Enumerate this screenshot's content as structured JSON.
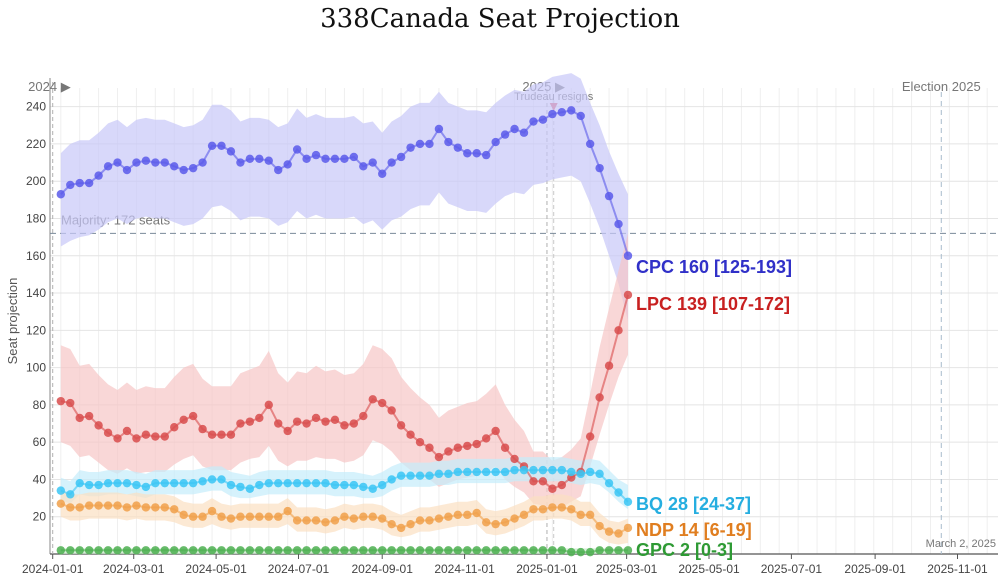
{
  "title": "338Canada Seat Projection",
  "chart_data": {
    "type": "line",
    "title": "338Canada Seat Projection",
    "ylabel": "Seat projection",
    "xlabel": "",
    "ylim": [
      0,
      250
    ],
    "yticks": [
      20,
      40,
      60,
      80,
      100,
      120,
      140,
      160,
      180,
      200,
      220,
      240
    ],
    "xlim": [
      "2023-12-30",
      "2025-12-01"
    ],
    "xticks": [
      "2024-01-01",
      "2024-03-01",
      "2024-05-01",
      "2024-07-01",
      "2024-09-01",
      "2024-11-01",
      "2025-01-01",
      "2025-03-01",
      "2025-05-01",
      "2025-07-01",
      "2025-09-01",
      "2025-11-01"
    ],
    "grid": true,
    "majority": {
      "value": 172,
      "label": "Majority: 172 seats"
    },
    "year_markers": [
      {
        "date": "2024-01-01",
        "label": "2024 ▶"
      },
      {
        "date": "2025-01-01",
        "label": "2025 ▶"
      }
    ],
    "event_markers": [
      {
        "date": "2025-01-06",
        "label": "Trudeau resigns",
        "color": "#e06070"
      },
      {
        "date": "2025-10-20",
        "label": "Election 2025",
        "color": "#6a8fb0"
      }
    ],
    "updated_label": "March 2, 2025",
    "dates": [
      "2024-01-07",
      "2024-01-14",
      "2024-01-21",
      "2024-01-28",
      "2024-02-04",
      "2024-02-11",
      "2024-02-18",
      "2024-02-25",
      "2024-03-03",
      "2024-03-10",
      "2024-03-17",
      "2024-03-24",
      "2024-03-31",
      "2024-04-07",
      "2024-04-14",
      "2024-04-21",
      "2024-04-28",
      "2024-05-05",
      "2024-05-12",
      "2024-05-19",
      "2024-05-26",
      "2024-06-02",
      "2024-06-09",
      "2024-06-16",
      "2024-06-23",
      "2024-06-30",
      "2024-07-07",
      "2024-07-14",
      "2024-07-21",
      "2024-07-28",
      "2024-08-04",
      "2024-08-11",
      "2024-08-18",
      "2024-08-25",
      "2024-09-01",
      "2024-09-08",
      "2024-09-15",
      "2024-09-22",
      "2024-09-29",
      "2024-10-06",
      "2024-10-13",
      "2024-10-20",
      "2024-10-27",
      "2024-11-03",
      "2024-11-10",
      "2024-11-17",
      "2024-11-24",
      "2024-12-01",
      "2024-12-08",
      "2024-12-15",
      "2024-12-22",
      "2024-12-29",
      "2025-01-05",
      "2025-01-12",
      "2025-01-19",
      "2025-01-26",
      "2025-02-02",
      "2025-02-09",
      "2025-02-16",
      "2025-02-23",
      "2025-03-02"
    ],
    "series": [
      {
        "name": "CPC",
        "color": "#5b5bea",
        "band_color": "#c8c8f8",
        "label_color": "#3030c8",
        "final_label": "CPC 160 [125-193]",
        "values": [
          193,
          198,
          199,
          199,
          203,
          208,
          210,
          206,
          210,
          211,
          210,
          210,
          208,
          206,
          207,
          210,
          219,
          219,
          216,
          210,
          212,
          212,
          211,
          206,
          209,
          217,
          212,
          214,
          212,
          212,
          212,
          213,
          208,
          210,
          204,
          210,
          213,
          218,
          220,
          220,
          228,
          221,
          218,
          215,
          215,
          214,
          221,
          225,
          228,
          226,
          232,
          233,
          236,
          237,
          238,
          235,
          220,
          207,
          192,
          177,
          160
        ],
        "low": [
          165,
          168,
          170,
          171,
          174,
          178,
          180,
          177,
          180,
          181,
          180,
          180,
          178,
          176,
          177,
          180,
          186,
          187,
          184,
          179,
          181,
          181,
          180,
          176,
          178,
          184,
          180,
          182,
          180,
          180,
          180,
          181,
          177,
          179,
          174,
          179,
          181,
          185,
          187,
          187,
          194,
          188,
          186,
          184,
          184,
          183,
          188,
          192,
          194,
          193,
          198,
          199,
          201,
          202,
          203,
          200,
          188,
          175,
          160,
          145,
          125
        ],
        "high": [
          215,
          220,
          222,
          222,
          226,
          231,
          233,
          229,
          233,
          234,
          233,
          233,
          231,
          229,
          230,
          233,
          241,
          241,
          238,
          232,
          234,
          234,
          233,
          229,
          231,
          239,
          234,
          236,
          234,
          234,
          234,
          235,
          231,
          232,
          226,
          232,
          235,
          240,
          242,
          242,
          248,
          242,
          240,
          238,
          238,
          237,
          242,
          246,
          249,
          248,
          252,
          253,
          256,
          257,
          258,
          255,
          242,
          230,
          216,
          204,
          193
        ]
      },
      {
        "name": "LPC",
        "color": "#d84c4c",
        "band_color": "#f7c6c6",
        "label_color": "#c82020",
        "final_label": "LPC 139 [107-172]",
        "values": [
          82,
          81,
          73,
          74,
          69,
          65,
          62,
          66,
          62,
          64,
          63,
          63,
          68,
          72,
          74,
          67,
          64,
          64,
          64,
          70,
          71,
          73,
          80,
          70,
          66,
          71,
          70,
          73,
          71,
          72,
          69,
          70,
          74,
          83,
          81,
          77,
          69,
          64,
          60,
          57,
          52,
          55,
          57,
          58,
          59,
          62,
          66,
          57,
          51,
          47,
          39,
          39,
          35,
          37,
          41,
          44,
          63,
          84,
          101,
          120,
          139
        ],
        "low": [
          60,
          58,
          52,
          53,
          49,
          45,
          43,
          46,
          43,
          44,
          44,
          44,
          48,
          51,
          53,
          47,
          45,
          45,
          45,
          49,
          51,
          52,
          58,
          50,
          47,
          50,
          50,
          52,
          51,
          51,
          49,
          50,
          53,
          61,
          59,
          55,
          49,
          45,
          42,
          40,
          36,
          38,
          40,
          41,
          42,
          44,
          47,
          40,
          36,
          33,
          27,
          26,
          23,
          25,
          28,
          31,
          47,
          64,
          80,
          95,
          107
        ],
        "high": [
          112,
          110,
          101,
          102,
          96,
          91,
          88,
          92,
          88,
          90,
          89,
          89,
          95,
          100,
          102,
          94,
          90,
          90,
          90,
          97,
          99,
          101,
          109,
          97,
          92,
          98,
          97,
          101,
          98,
          99,
          96,
          97,
          102,
          112,
          110,
          105,
          95,
          89,
          84,
          80,
          73,
          77,
          79,
          81,
          82,
          86,
          91,
          80,
          72,
          66,
          55,
          55,
          50,
          52,
          56,
          62,
          86,
          111,
          132,
          152,
          172
        ]
      },
      {
        "name": "BQ",
        "color": "#3ac6f5",
        "band_color": "#c4ecfb",
        "label_color": "#25aee0",
        "final_label": "BQ 28 [24-37]",
        "values": [
          34,
          32,
          38,
          37,
          37,
          38,
          38,
          38,
          37,
          36,
          38,
          38,
          38,
          38,
          38,
          39,
          40,
          40,
          37,
          36,
          35,
          37,
          38,
          38,
          38,
          38,
          38,
          38,
          38,
          37,
          37,
          37,
          36,
          35,
          37,
          40,
          42,
          42,
          42,
          42,
          43,
          43,
          44,
          44,
          44,
          44,
          44,
          44,
          45,
          45,
          45,
          45,
          45,
          45,
          44,
          43,
          44,
          43,
          38,
          33,
          28
        ],
        "low": [
          29,
          27,
          32,
          31,
          31,
          32,
          32,
          32,
          31,
          30,
          32,
          32,
          32,
          32,
          32,
          33,
          34,
          34,
          31,
          30,
          30,
          31,
          32,
          32,
          32,
          32,
          32,
          32,
          32,
          31,
          31,
          31,
          30,
          30,
          31,
          34,
          36,
          36,
          36,
          36,
          37,
          37,
          38,
          38,
          38,
          38,
          38,
          38,
          39,
          39,
          39,
          39,
          39,
          39,
          38,
          37,
          38,
          37,
          33,
          28,
          24
        ],
        "high": [
          41,
          39,
          45,
          44,
          44,
          45,
          45,
          45,
          44,
          43,
          45,
          45,
          45,
          45,
          45,
          46,
          47,
          47,
          44,
          43,
          42,
          44,
          45,
          45,
          45,
          45,
          45,
          45,
          45,
          44,
          44,
          44,
          43,
          42,
          44,
          47,
          49,
          49,
          49,
          49,
          50,
          50,
          51,
          51,
          51,
          51,
          51,
          51,
          52,
          52,
          52,
          52,
          52,
          52,
          51,
          50,
          51,
          50,
          45,
          40,
          37
        ]
      },
      {
        "name": "NDP",
        "color": "#f0a04a",
        "band_color": "#fbe0c2",
        "label_color": "#e07e20",
        "final_label": "NDP 14 [6-19]",
        "values": [
          27,
          25,
          25,
          26,
          26,
          26,
          26,
          25,
          26,
          25,
          25,
          25,
          24,
          21,
          20,
          20,
          23,
          20,
          19,
          20,
          20,
          20,
          20,
          20,
          23,
          18,
          18,
          18,
          17,
          18,
          20,
          19,
          20,
          20,
          19,
          16,
          14,
          16,
          18,
          18,
          19,
          20,
          21,
          21,
          22,
          17,
          16,
          17,
          19,
          21,
          24,
          24,
          25,
          25,
          24,
          21,
          21,
          15,
          12,
          11,
          14
        ],
        "low": [
          20,
          18,
          18,
          19,
          19,
          19,
          19,
          18,
          19,
          18,
          18,
          18,
          17,
          15,
          14,
          14,
          16,
          14,
          13,
          14,
          14,
          14,
          14,
          14,
          16,
          12,
          12,
          12,
          11,
          12,
          14,
          13,
          14,
          14,
          13,
          10,
          9,
          10,
          12,
          12,
          13,
          14,
          15,
          15,
          16,
          11,
          10,
          11,
          13,
          15,
          18,
          18,
          19,
          19,
          18,
          15,
          15,
          9,
          6,
          5,
          6
        ],
        "high": [
          34,
          32,
          32,
          33,
          33,
          33,
          33,
          32,
          33,
          32,
          32,
          32,
          31,
          28,
          27,
          27,
          30,
          27,
          26,
          27,
          27,
          27,
          27,
          27,
          30,
          25,
          25,
          25,
          24,
          25,
          27,
          26,
          27,
          27,
          26,
          23,
          21,
          23,
          25,
          25,
          26,
          27,
          28,
          28,
          29,
          24,
          23,
          24,
          26,
          28,
          31,
          31,
          32,
          32,
          31,
          28,
          28,
          22,
          18,
          17,
          19
        ]
      },
      {
        "name": "GPC",
        "color": "#4caf50",
        "band_color": "#c8e8c9",
        "label_color": "#2e9a34",
        "final_label": "GPC 2 [0-3]",
        "values": [
          2,
          2,
          2,
          2,
          2,
          2,
          2,
          2,
          2,
          2,
          2,
          2,
          2,
          2,
          2,
          2,
          2,
          2,
          2,
          2,
          2,
          2,
          2,
          2,
          2,
          2,
          2,
          2,
          2,
          2,
          2,
          2,
          2,
          2,
          2,
          2,
          2,
          2,
          2,
          2,
          2,
          2,
          2,
          2,
          2,
          2,
          2,
          2,
          2,
          2,
          2,
          2,
          2,
          2,
          1,
          1,
          1,
          2,
          2,
          2,
          2
        ],
        "low": [
          0,
          0,
          0,
          0,
          0,
          0,
          0,
          0,
          0,
          0,
          0,
          0,
          0,
          0,
          0,
          0,
          0,
          0,
          0,
          0,
          0,
          0,
          0,
          0,
          0,
          0,
          0,
          0,
          0,
          0,
          0,
          0,
          0,
          0,
          0,
          0,
          0,
          0,
          0,
          0,
          0,
          0,
          0,
          0,
          0,
          0,
          0,
          0,
          0,
          0,
          0,
          0,
          0,
          0,
          0,
          0,
          0,
          0,
          0,
          0,
          0
        ],
        "high": [
          3,
          3,
          3,
          3,
          3,
          3,
          3,
          3,
          3,
          3,
          3,
          3,
          3,
          3,
          3,
          3,
          3,
          3,
          3,
          3,
          3,
          3,
          3,
          3,
          3,
          3,
          3,
          3,
          3,
          3,
          3,
          3,
          3,
          3,
          3,
          3,
          3,
          3,
          3,
          3,
          3,
          3,
          3,
          3,
          3,
          3,
          3,
          3,
          3,
          3,
          3,
          3,
          3,
          3,
          3,
          3,
          3,
          3,
          3,
          3,
          3
        ]
      }
    ]
  }
}
